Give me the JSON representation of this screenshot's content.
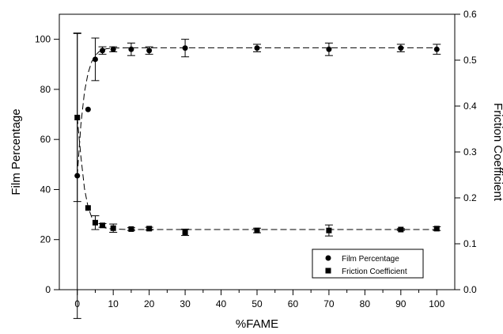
{
  "chart_data": {
    "type": "scatter",
    "xlabel": "%FAME",
    "ylabel": "Film Percentage",
    "y2label": "Friction Coefficient",
    "xlim": [
      -5,
      105
    ],
    "ylim": [
      0,
      110
    ],
    "y2lim": [
      0,
      0.6
    ],
    "x_ticks": [
      0,
      10,
      20,
      30,
      40,
      50,
      60,
      70,
      80,
      90,
      100
    ],
    "x_minor_ticks": [
      5,
      15,
      25,
      35,
      45,
      55,
      65,
      75,
      85,
      95
    ],
    "y_ticks": [
      0,
      20,
      40,
      60,
      80,
      100
    ],
    "y2_ticks": [
      "0.0",
      "0.1",
      "0.2",
      "0.3",
      "0.4",
      "0.5",
      "0.6"
    ],
    "legend_position": "bottom-right",
    "grid": false,
    "series": [
      {
        "name": "Film Percentage",
        "axis": "left",
        "marker": "circle",
        "x": [
          0,
          3,
          5,
          7,
          10,
          15,
          20,
          30,
          50,
          70,
          90,
          100
        ],
        "y": [
          45.5,
          72,
          92,
          95.5,
          96,
          96,
          95.5,
          96.5,
          96.5,
          96,
          96.5,
          96
        ],
        "error": [
          57,
          0,
          8.5,
          1.5,
          1,
          2.5,
          1.5,
          3.5,
          1.5,
          2.5,
          1.5,
          2
        ],
        "fit": [
          [
            0,
            45.5
          ],
          [
            1,
            66
          ],
          [
            2,
            79
          ],
          [
            3,
            86.5
          ],
          [
            4,
            91
          ],
          [
            5,
            93.5
          ],
          [
            6,
            95
          ],
          [
            8,
            96.2
          ],
          [
            10,
            96.5
          ],
          [
            15,
            96.6
          ],
          [
            20,
            96.6
          ],
          [
            40,
            96.6
          ],
          [
            60,
            96.6
          ],
          [
            80,
            96.6
          ],
          [
            100,
            96.6
          ]
        ]
      },
      {
        "name": "Friction Coefficient",
        "axis": "right",
        "marker": "square",
        "x": [
          0,
          3,
          5,
          7,
          10,
          15,
          20,
          30,
          50,
          70,
          90,
          100
        ],
        "y": [
          0.375,
          0.178,
          0.146,
          0.14,
          0.134,
          0.132,
          0.133,
          0.125,
          0.129,
          0.129,
          0.131,
          0.133
        ],
        "error": [
          0.183,
          0,
          0.015,
          0.004,
          0.009,
          0.003,
          0.003,
          0.007,
          0.005,
          0.012,
          0.002,
          0.004
        ],
        "fit": [
          [
            0,
            0.375
          ],
          [
            1,
            0.29
          ],
          [
            2,
            0.22
          ],
          [
            3,
            0.18
          ],
          [
            4,
            0.158
          ],
          [
            5,
            0.146
          ],
          [
            6,
            0.139
          ],
          [
            8,
            0.134
          ],
          [
            10,
            0.132
          ],
          [
            15,
            0.131
          ],
          [
            20,
            0.131
          ],
          [
            40,
            0.131
          ],
          [
            60,
            0.131
          ],
          [
            80,
            0.131
          ],
          [
            100,
            0.131
          ]
        ]
      }
    ]
  }
}
